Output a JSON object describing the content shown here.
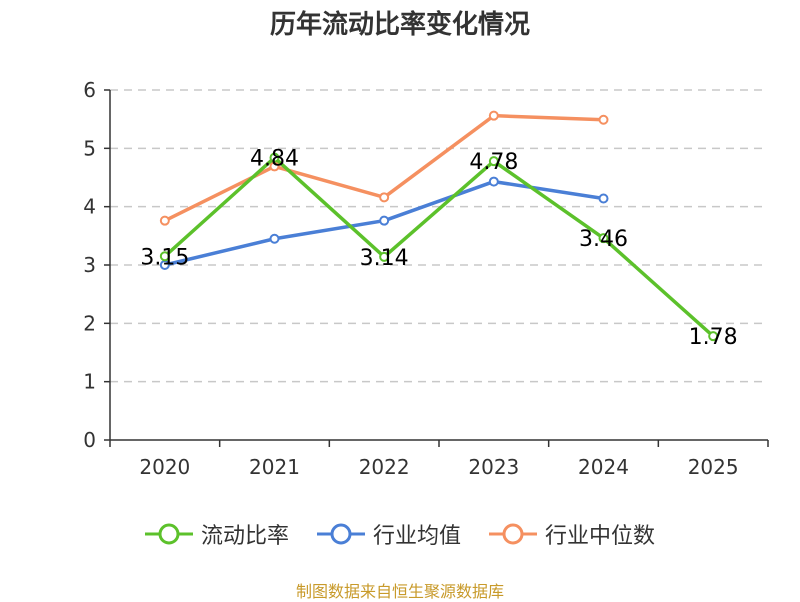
{
  "chart_data": {
    "type": "line",
    "title": "历年流动比率变化情况",
    "categories": [
      "2020",
      "2021",
      "2022",
      "2023",
      "2024",
      "2025"
    ],
    "ylim": [
      0,
      6
    ],
    "yticks": [
      "0",
      "1",
      "2",
      "3",
      "4",
      "5",
      "6"
    ],
    "grid": true,
    "legend_position": "bottom",
    "series": [
      {
        "name": "流动比率",
        "color": "#5cc12b",
        "values": [
          3.15,
          4.84,
          3.14,
          4.78,
          3.46,
          1.78
        ],
        "labels": [
          "3.15",
          "4.84",
          "3.14",
          "4.78",
          "3.46",
          "1.78"
        ]
      },
      {
        "name": "行业均值",
        "color": "#4a7fd6",
        "values": [
          3.0,
          3.45,
          3.76,
          4.43,
          4.14,
          null
        ]
      },
      {
        "name": "行业中位数",
        "color": "#f59060",
        "values": [
          3.76,
          4.69,
          4.16,
          5.56,
          5.49,
          null
        ]
      }
    ]
  },
  "source": {
    "text": "制图数据来自恒生聚源数据库",
    "color": "#c89a2a"
  }
}
